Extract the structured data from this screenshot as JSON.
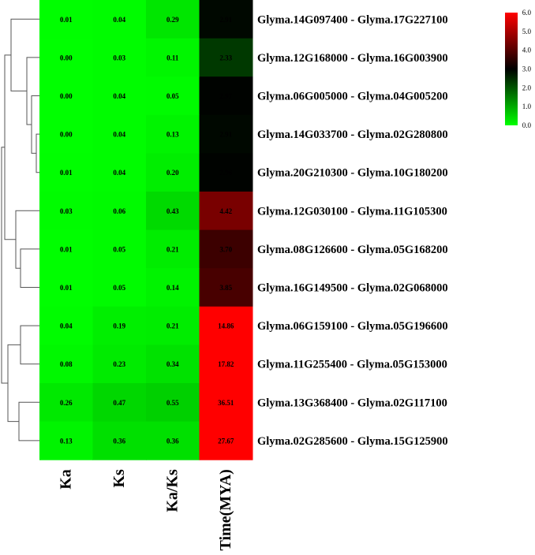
{
  "chart_data": {
    "type": "heatmap",
    "columns": [
      "Ka",
      "Ks",
      "Ka/Ks",
      "Time(MYA)"
    ],
    "rows": [
      "Glyma.14G097400 - Glyma.17G227100",
      "Glyma.12G168000 - Glyma.16G003900",
      "Glyma.06G005000 - Glyma.04G005200",
      "Glyma.14G033700 - Glyma.02G280800",
      "Glyma.20G210300 - Glyma.10G180200",
      "Glyma.12G030100 - Glyma.11G105300",
      "Glyma.08G126600 - Glyma.05G168200",
      "Glyma.16G149500 - Glyma.02G068000",
      "Glyma.06G159100 - Glyma.05G196600",
      "Glyma.11G255400 - Glyma.05G153000",
      "Glyma.13G368400 - Glyma.02G117100",
      "Glyma.02G285600 - Glyma.15G125900"
    ],
    "values": [
      [
        0.01,
        0.04,
        0.29,
        2.91
      ],
      [
        0.0,
        0.03,
        0.11,
        2.33
      ],
      [
        0.0,
        0.04,
        0.05,
        2.97
      ],
      [
        0.0,
        0.04,
        0.13,
        2.91
      ],
      [
        0.01,
        0.04,
        0.2,
        2.96
      ],
      [
        0.03,
        0.06,
        0.43,
        4.42
      ],
      [
        0.01,
        0.05,
        0.21,
        3.7
      ],
      [
        0.01,
        0.05,
        0.14,
        3.85
      ],
      [
        0.04,
        0.19,
        0.21,
        14.86
      ],
      [
        0.08,
        0.23,
        0.34,
        17.82
      ],
      [
        0.26,
        0.47,
        0.55,
        36.51
      ],
      [
        0.13,
        0.36,
        0.36,
        27.67
      ]
    ],
    "value_labels": [
      [
        "0.01",
        "0.04",
        "0.29",
        "2.91"
      ],
      [
        "0.00",
        "0.03",
        "0.11",
        "2.33"
      ],
      [
        "0.00",
        "0.04",
        "0.05",
        "2.97"
      ],
      [
        "0.00",
        "0.04",
        "0.13",
        "2.91"
      ],
      [
        "0.01",
        "0.04",
        "0.20",
        "2.96"
      ],
      [
        "0.03",
        "0.06",
        "0.43",
        "4.42"
      ],
      [
        "0.01",
        "0.05",
        "0.21",
        "3.70"
      ],
      [
        "0.01",
        "0.05",
        "0.14",
        "3.85"
      ],
      [
        "0.04",
        "0.19",
        "0.21",
        "14.86"
      ],
      [
        "0.08",
        "0.23",
        "0.34",
        "17.82"
      ],
      [
        "0.26",
        "0.47",
        "0.55",
        "36.51"
      ],
      [
        "0.13",
        "0.36",
        "0.36",
        "27.67"
      ]
    ],
    "colorbar": {
      "range": [
        0,
        6
      ],
      "ticks": [
        "6.0",
        "5.0",
        "4.0",
        "3.0",
        "2.0",
        "1.0",
        "0.0"
      ],
      "colors": [
        "#00ff00",
        "#000000",
        "#ff0000"
      ]
    },
    "dendrogram": "left",
    "grid": false
  }
}
